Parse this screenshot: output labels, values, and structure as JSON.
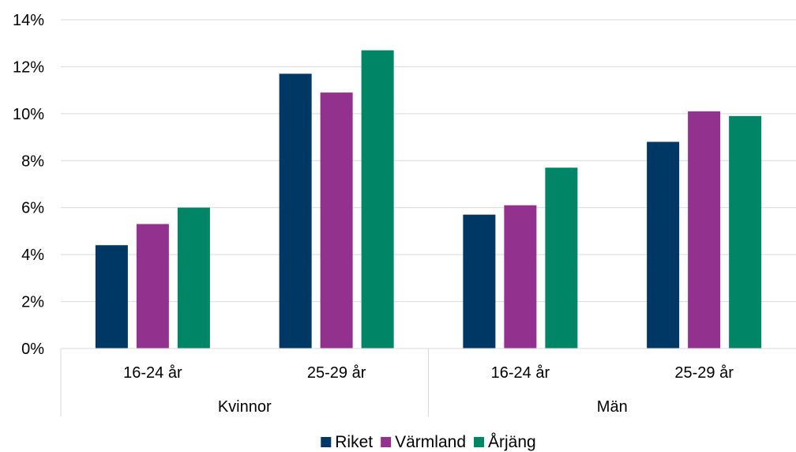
{
  "chart_data": {
    "type": "bar",
    "groups": [
      {
        "label": "Kvinnor",
        "categories": [
          "16-24 år",
          "25-29 år"
        ]
      },
      {
        "label": "Män",
        "categories": [
          "16-24 år",
          "25-29 år"
        ]
      }
    ],
    "series": [
      {
        "name": "Riket",
        "color": "#003865",
        "values": [
          4.4,
          11.7,
          5.7,
          8.8
        ]
      },
      {
        "name": "Värmland",
        "color": "#93328E",
        "values": [
          5.3,
          10.9,
          6.1,
          10.1
        ]
      },
      {
        "name": "Årjäng",
        "color": "#008566",
        "values": [
          6.0,
          12.7,
          7.7,
          9.9
        ]
      }
    ],
    "ylim": [
      0,
      14
    ],
    "yticks": [
      0,
      2,
      4,
      6,
      8,
      10,
      12,
      14
    ],
    "ytick_suffix": "%",
    "grid": true,
    "legend_position": "bottom"
  }
}
